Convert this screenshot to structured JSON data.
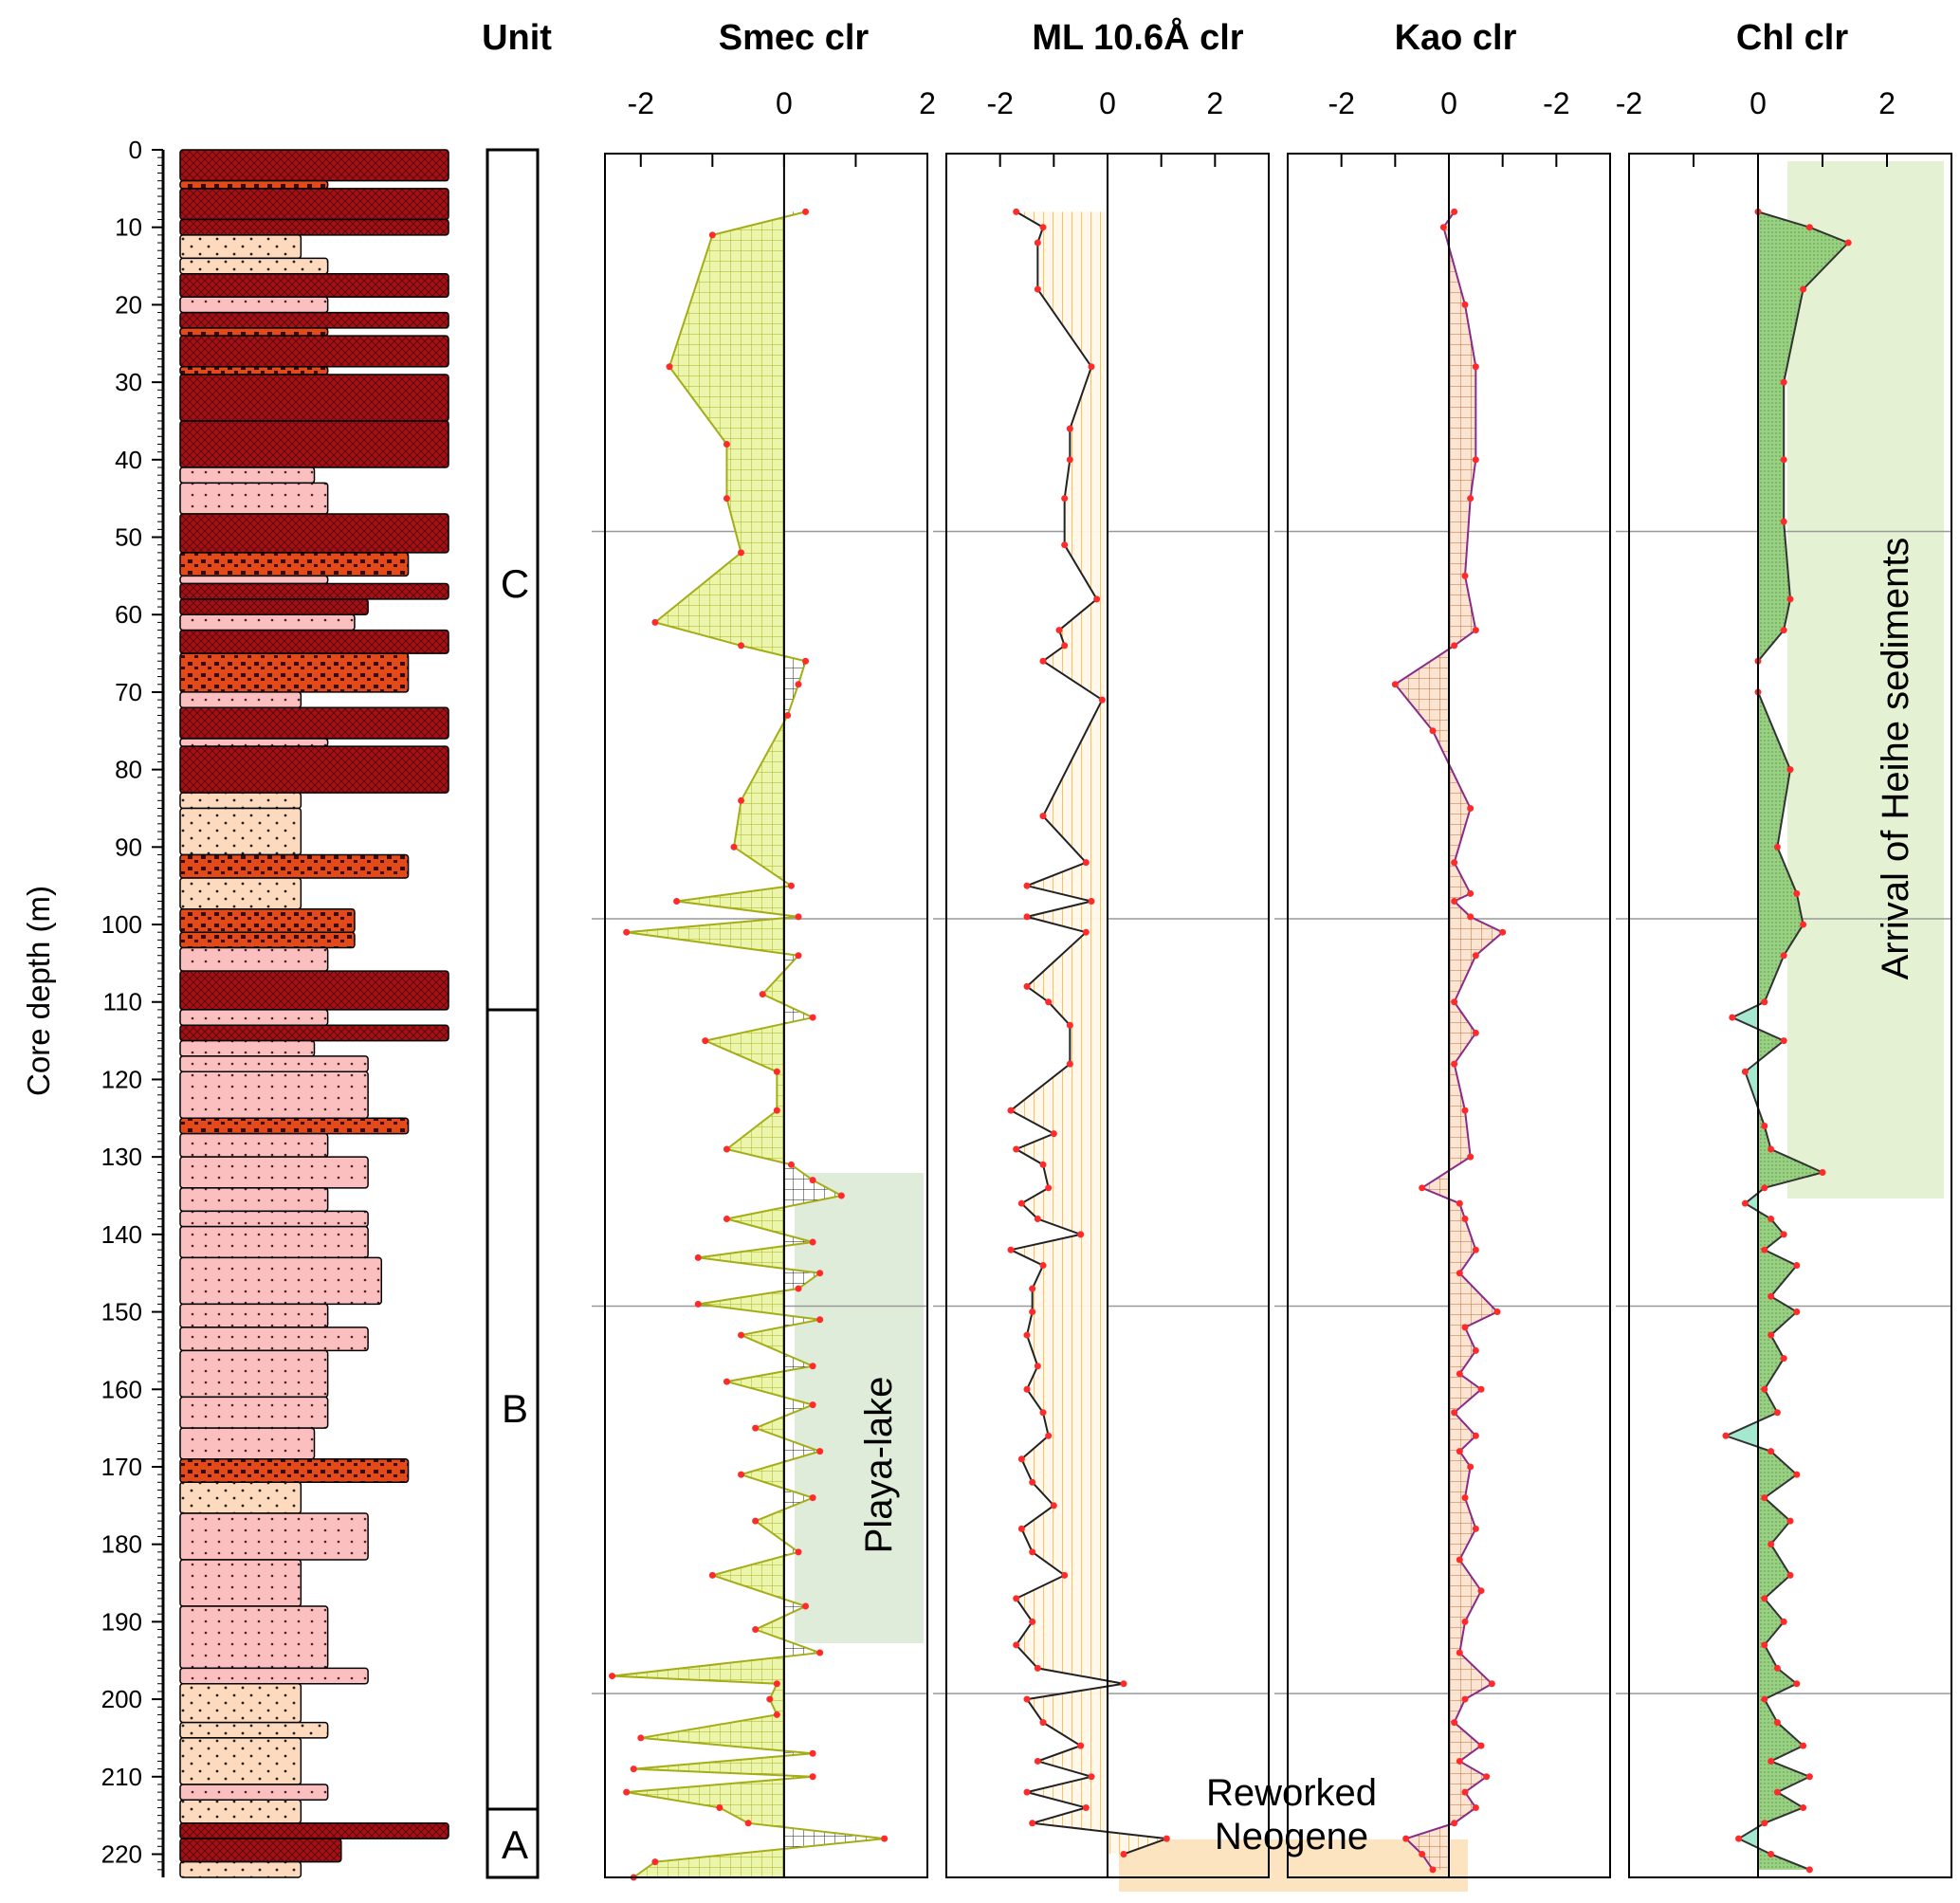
{
  "unit_header": "Unit",
  "units": [
    {
      "label": "C",
      "top": 0,
      "bottom": 111
    },
    {
      "label": "B",
      "top": 111,
      "bottom": 214
    },
    {
      "label": "A",
      "top": 214,
      "bottom": 223
    }
  ],
  "depth_axis": {
    "label": "Core depth (m)",
    "ticks": [
      0,
      10,
      20,
      30,
      40,
      50,
      60,
      70,
      80,
      90,
      100,
      110,
      120,
      130,
      140,
      150,
      160,
      170,
      180,
      190,
      200,
      210,
      220
    ],
    "range": [
      0,
      223
    ]
  },
  "lithology_colors": {
    "mudstone": "#a50f15",
    "red_silt": "#e34a1a",
    "silt": "#fcbfbf",
    "sand": "#fdd9bd"
  },
  "lithology_beds": [
    {
      "top": 0,
      "bottom": 4,
      "type": "mudstone",
      "grain": 1.0
    },
    {
      "top": 4,
      "bottom": 5,
      "type": "red_silt",
      "grain": 0.55
    },
    {
      "top": 5,
      "bottom": 9,
      "type": "mudstone",
      "grain": 1.0
    },
    {
      "top": 9,
      "bottom": 11,
      "type": "mudstone",
      "grain": 1.0
    },
    {
      "top": 11,
      "bottom": 14,
      "type": "sand",
      "grain": 0.45
    },
    {
      "top": 14,
      "bottom": 16,
      "type": "sand",
      "grain": 0.55
    },
    {
      "top": 16,
      "bottom": 19,
      "type": "mudstone",
      "grain": 1.0
    },
    {
      "top": 19,
      "bottom": 21,
      "type": "silt",
      "grain": 0.55
    },
    {
      "top": 21,
      "bottom": 23,
      "type": "mudstone",
      "grain": 1.0
    },
    {
      "top": 23,
      "bottom": 24,
      "type": "red_silt",
      "grain": 0.55
    },
    {
      "top": 24,
      "bottom": 28,
      "type": "mudstone",
      "grain": 1.0
    },
    {
      "top": 28,
      "bottom": 29,
      "type": "red_silt",
      "grain": 0.55
    },
    {
      "top": 29,
      "bottom": 35,
      "type": "mudstone",
      "grain": 1.0
    },
    {
      "top": 35,
      "bottom": 41,
      "type": "mudstone",
      "grain": 1.0
    },
    {
      "top": 41,
      "bottom": 43,
      "type": "silt",
      "grain": 0.5
    },
    {
      "top": 43,
      "bottom": 47,
      "type": "silt",
      "grain": 0.55
    },
    {
      "top": 47,
      "bottom": 52,
      "type": "mudstone",
      "grain": 1.0
    },
    {
      "top": 52,
      "bottom": 55,
      "type": "red_silt",
      "grain": 0.85
    },
    {
      "top": 55,
      "bottom": 56,
      "type": "silt",
      "grain": 0.55
    },
    {
      "top": 56,
      "bottom": 58,
      "type": "mudstone",
      "grain": 1.0
    },
    {
      "top": 58,
      "bottom": 60,
      "type": "mudstone",
      "grain": 0.7
    },
    {
      "top": 60,
      "bottom": 62,
      "type": "silt",
      "grain": 0.65
    },
    {
      "top": 62,
      "bottom": 65,
      "type": "mudstone",
      "grain": 1.0
    },
    {
      "top": 65,
      "bottom": 70,
      "type": "red_silt",
      "grain": 0.85
    },
    {
      "top": 70,
      "bottom": 72,
      "type": "silt",
      "grain": 0.45
    },
    {
      "top": 72,
      "bottom": 76,
      "type": "mudstone",
      "grain": 1.0
    },
    {
      "top": 76,
      "bottom": 77,
      "type": "silt",
      "grain": 0.55
    },
    {
      "top": 77,
      "bottom": 83,
      "type": "mudstone",
      "grain": 1.0
    },
    {
      "top": 83,
      "bottom": 85,
      "type": "sand",
      "grain": 0.45
    },
    {
      "top": 85,
      "bottom": 91,
      "type": "sand",
      "grain": 0.45
    },
    {
      "top": 91,
      "bottom": 94,
      "type": "red_silt",
      "grain": 0.85
    },
    {
      "top": 94,
      "bottom": 98,
      "type": "sand",
      "grain": 0.45
    },
    {
      "top": 98,
      "bottom": 101,
      "type": "red_silt",
      "grain": 0.65
    },
    {
      "top": 101,
      "bottom": 103,
      "type": "red_silt",
      "grain": 0.65
    },
    {
      "top": 103,
      "bottom": 106,
      "type": "silt",
      "grain": 0.55
    },
    {
      "top": 106,
      "bottom": 111,
      "type": "mudstone",
      "grain": 1.0
    },
    {
      "top": 111,
      "bottom": 113,
      "type": "silt",
      "grain": 0.55
    },
    {
      "top": 113,
      "bottom": 115,
      "type": "mudstone",
      "grain": 1.0
    },
    {
      "top": 115,
      "bottom": 117,
      "type": "silt",
      "grain": 0.5
    },
    {
      "top": 117,
      "bottom": 119,
      "type": "silt",
      "grain": 0.7
    },
    {
      "top": 119,
      "bottom": 125,
      "type": "silt",
      "grain": 0.7
    },
    {
      "top": 125,
      "bottom": 127,
      "type": "red_silt",
      "grain": 0.85
    },
    {
      "top": 127,
      "bottom": 130,
      "type": "silt",
      "grain": 0.55
    },
    {
      "top": 130,
      "bottom": 134,
      "type": "silt",
      "grain": 0.7
    },
    {
      "top": 134,
      "bottom": 137,
      "type": "silt",
      "grain": 0.55
    },
    {
      "top": 137,
      "bottom": 139,
      "type": "silt",
      "grain": 0.7
    },
    {
      "top": 139,
      "bottom": 143,
      "type": "silt",
      "grain": 0.7
    },
    {
      "top": 143,
      "bottom": 149,
      "type": "silt",
      "grain": 0.75
    },
    {
      "top": 149,
      "bottom": 152,
      "type": "silt",
      "grain": 0.55
    },
    {
      "top": 152,
      "bottom": 155,
      "type": "silt",
      "grain": 0.7
    },
    {
      "top": 155,
      "bottom": 161,
      "type": "silt",
      "grain": 0.55
    },
    {
      "top": 161,
      "bottom": 165,
      "type": "silt",
      "grain": 0.55
    },
    {
      "top": 165,
      "bottom": 169,
      "type": "silt",
      "grain": 0.5
    },
    {
      "top": 169,
      "bottom": 172,
      "type": "red_silt",
      "grain": 0.85
    },
    {
      "top": 172,
      "bottom": 176,
      "type": "sand",
      "grain": 0.45
    },
    {
      "top": 176,
      "bottom": 182,
      "type": "silt",
      "grain": 0.7
    },
    {
      "top": 182,
      "bottom": 188,
      "type": "silt",
      "grain": 0.45
    },
    {
      "top": 188,
      "bottom": 196,
      "type": "silt",
      "grain": 0.55
    },
    {
      "top": 196,
      "bottom": 198,
      "type": "silt",
      "grain": 0.7
    },
    {
      "top": 198,
      "bottom": 203,
      "type": "sand",
      "grain": 0.45
    },
    {
      "top": 203,
      "bottom": 205,
      "type": "sand",
      "grain": 0.55
    },
    {
      "top": 205,
      "bottom": 211,
      "type": "sand",
      "grain": 0.45
    },
    {
      "top": 211,
      "bottom": 213,
      "type": "silt",
      "grain": 0.55
    },
    {
      "top": 213,
      "bottom": 216,
      "type": "sand",
      "grain": 0.45
    },
    {
      "top": 216,
      "bottom": 218,
      "type": "mudstone",
      "grain": 1.0
    },
    {
      "top": 218,
      "bottom": 221,
      "type": "mudstone",
      "grain": 0.6
    },
    {
      "top": 221,
      "bottom": 223,
      "type": "sand",
      "grain": 0.45
    }
  ],
  "chart_data": [
    {
      "type": "area",
      "title": "Smec clr",
      "xlim": [
        -2.5,
        2
      ],
      "xticks": [
        -2,
        0,
        2
      ],
      "xtick_labels": [
        "-2",
        "0",
        "2"
      ],
      "fill_color": "#eaf5a8",
      "line_color": "#a5ad16",
      "depth": [
        8,
        11,
        28,
        38,
        45,
        52,
        61,
        64,
        66,
        69,
        73,
        84,
        90,
        95,
        97,
        99,
        101,
        104,
        109,
        112,
        115,
        119,
        124,
        129,
        131,
        133,
        135,
        138,
        141,
        143,
        145,
        147,
        149,
        151,
        153,
        157,
        159,
        162,
        165,
        168,
        171,
        174,
        177,
        181,
        184,
        188,
        191,
        194,
        197,
        198,
        200,
        202,
        205,
        207,
        209,
        210,
        212,
        214,
        216,
        218,
        221,
        223
      ],
      "values": [
        0.3,
        -1.0,
        -1.6,
        -0.8,
        -0.8,
        -0.6,
        -1.8,
        -0.6,
        0.3,
        0.2,
        0.05,
        -0.6,
        -0.7,
        0.1,
        -1.5,
        0.2,
        -2.2,
        0.2,
        -0.3,
        0.4,
        -1.1,
        -0.1,
        -0.1,
        -0.8,
        0.1,
        0.4,
        0.8,
        -0.8,
        0.4,
        -1.2,
        0.5,
        0.2,
        -1.2,
        0.5,
        -0.6,
        0.4,
        -0.8,
        0.4,
        -0.4,
        0.5,
        -0.6,
        0.4,
        -0.4,
        0.2,
        -1.0,
        0.3,
        -0.4,
        0.5,
        -2.4,
        -0.1,
        -0.2,
        -0.1,
        -2.0,
        0.4,
        -2.1,
        0.4,
        -2.2,
        -0.9,
        -0.5,
        1.4,
        -1.8,
        -2.1
      ],
      "annotations": [
        "Playa-lake"
      ]
    },
    {
      "type": "area",
      "title": "ML 10.6Å clr",
      "xlim": [
        -3,
        3
      ],
      "xticks": [
        -2,
        0,
        2
      ],
      "xtick_labels": [
        "-2",
        "0",
        "2"
      ],
      "fill_color": "#fee6c5",
      "line_color": "#222222",
      "depth": [
        8,
        10,
        12,
        18,
        28,
        36,
        40,
        45,
        51,
        58,
        62,
        64,
        66,
        71,
        86,
        92,
        95,
        97,
        99,
        101,
        108,
        110,
        113,
        118,
        124,
        127,
        129,
        131,
        134,
        136,
        138,
        140,
        142,
        144,
        147,
        150,
        153,
        157,
        160,
        163,
        166,
        169,
        172,
        175,
        178,
        181,
        184,
        187,
        190,
        193,
        196,
        198,
        200,
        203,
        206,
        208,
        210,
        212,
        214,
        216,
        218,
        220
      ],
      "values": [
        -1.7,
        -1.2,
        -1.3,
        -1.3,
        -0.3,
        -0.7,
        -0.7,
        -0.8,
        -0.8,
        -0.2,
        -0.9,
        -0.8,
        -1.2,
        -0.1,
        -1.2,
        -0.4,
        -1.5,
        -0.3,
        -1.5,
        -0.4,
        -1.5,
        -1.1,
        -0.7,
        -0.7,
        -1.8,
        -1.0,
        -1.7,
        -1.2,
        -1.1,
        -1.6,
        -1.3,
        -0.5,
        -1.8,
        -1.2,
        -1.4,
        -1.4,
        -1.5,
        -1.3,
        -1.5,
        -1.2,
        -1.1,
        -1.6,
        -1.4,
        -1.0,
        -1.6,
        -1.4,
        -0.8,
        -1.7,
        -1.4,
        -1.7,
        -1.3,
        0.3,
        -1.5,
        -1.2,
        -0.5,
        -1.3,
        -0.3,
        -1.5,
        -0.4,
        -1.4,
        1.1,
        0.3
      ],
      "annotations": [
        "Reworked",
        "Neogene"
      ]
    },
    {
      "type": "area",
      "title": "Kao clr",
      "xlim": [
        -3,
        3
      ],
      "xticks": [
        -2,
        0,
        -2
      ],
      "xtick_labels": [
        "-2",
        "0",
        "-2"
      ],
      "fill_color": "#fbe3cf",
      "line_color": "#8a2b8a",
      "depth": [
        8,
        10,
        20,
        28,
        40,
        45,
        55,
        62,
        64,
        69,
        75,
        85,
        92,
        96,
        97,
        99,
        101,
        104,
        110,
        114,
        118,
        124,
        130,
        134,
        136,
        138,
        142,
        145,
        150,
        152,
        155,
        158,
        160,
        163,
        166,
        168,
        170,
        174,
        178,
        182,
        186,
        190,
        194,
        198,
        200,
        203,
        206,
        208,
        210,
        212,
        214,
        216,
        218,
        220,
        222
      ],
      "values": [
        0.1,
        -0.1,
        0.3,
        0.5,
        0.5,
        0.4,
        0.3,
        0.5,
        0.1,
        -1.0,
        -0.3,
        0.4,
        0.1,
        0.4,
        0.1,
        0.4,
        1.0,
        0.5,
        0.1,
        0.5,
        0.1,
        0.3,
        0.4,
        -0.5,
        0.2,
        0.3,
        0.5,
        0.2,
        0.9,
        0.3,
        0.5,
        0.2,
        0.6,
        0.1,
        0.5,
        0.2,
        0.4,
        0.3,
        0.5,
        0.2,
        0.6,
        0.3,
        0.2,
        0.8,
        0.3,
        0.1,
        0.6,
        0.2,
        0.7,
        0.3,
        0.5,
        0.1,
        -0.8,
        -0.5,
        -0.3
      ],
      "annotations": []
    },
    {
      "type": "area",
      "title": "Chl clr",
      "xlim": [
        -2,
        3
      ],
      "xticks": [
        -2,
        0,
        2
      ],
      "xtick_labels": [
        "-2",
        "0",
        "2"
      ],
      "fill_color": "#94cf7c",
      "neg_fill_color": "#a5e8d0",
      "line_color": "#333333",
      "depth": [
        8,
        10,
        12,
        18,
        30,
        40,
        48,
        58,
        62,
        66,
        70,
        80,
        90,
        96,
        100,
        104,
        110,
        112,
        115,
        119,
        126,
        129,
        132,
        134,
        136,
        138,
        140,
        142,
        144,
        148,
        150,
        153,
        156,
        160,
        163,
        166,
        168,
        171,
        174,
        177,
        180,
        184,
        187,
        190,
        193,
        196,
        198,
        200,
        203,
        206,
        208,
        210,
        212,
        214,
        216,
        218,
        220,
        222
      ],
      "values": [
        0,
        0.8,
        1.4,
        0.7,
        0.4,
        0.4,
        0.4,
        0.5,
        0.4,
        0,
        0,
        0.5,
        0.3,
        0.6,
        0.7,
        0.4,
        0.1,
        -0.4,
        0.4,
        -0.2,
        0.1,
        0.2,
        1.0,
        0.1,
        -0.2,
        0.2,
        0.4,
        0.1,
        0.6,
        0.2,
        0.6,
        0.2,
        0.4,
        0.1,
        0.3,
        -0.5,
        0.2,
        0.6,
        0.1,
        0.5,
        0.2,
        0.5,
        0.1,
        0.4,
        0.1,
        0.3,
        0.6,
        0.1,
        0.3,
        0.7,
        0.2,
        0.8,
        0.3,
        0.7,
        0.1,
        -0.3,
        0.2,
        0.8
      ],
      "annotations": [
        "Arrival of Heihe sediments"
      ]
    }
  ]
}
